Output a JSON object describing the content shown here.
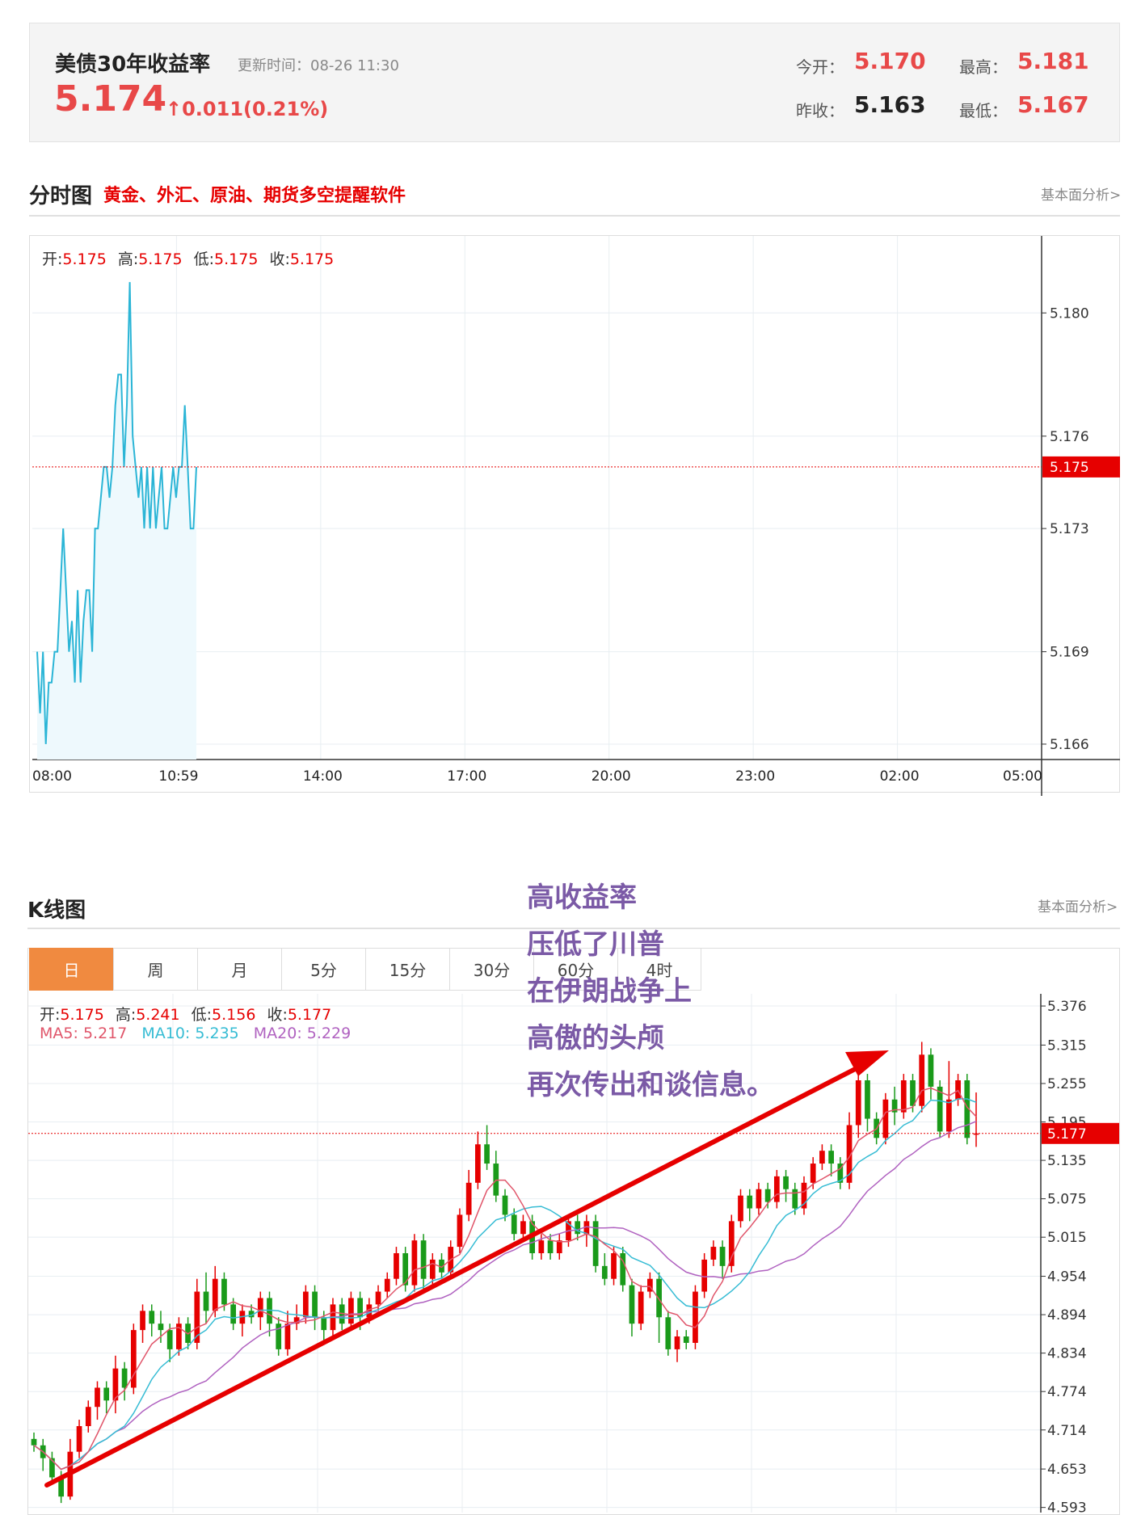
{
  "quote": {
    "title": "美债30年收益率",
    "update_label": "更新时间：",
    "update_time": "08-26 11:30",
    "price": "5.174",
    "change": "0.011(0.21%)",
    "open_label": "今开：",
    "open": "5.170",
    "high_label": "最高：",
    "high": "5.181",
    "prev_close_label": "昨收：",
    "prev_close": "5.163",
    "low_label": "最低：",
    "low": "5.167"
  },
  "intraday_section": {
    "title": "分时图",
    "ad": "黄金、外汇、原油、期货多空提醒软件",
    "link": "基本面分析>",
    "ohlc": {
      "open_label": "开:",
      "open": "5.175",
      "high_label": "高:",
      "high": "5.175",
      "low_label": "低:",
      "low": "5.175",
      "close_label": "收:",
      "close": "5.175"
    }
  },
  "kline_section": {
    "title": "K线图",
    "link": "基本面分析>",
    "tabs": [
      "日",
      "周",
      "月",
      "5分",
      "15分",
      "30分",
      "60分",
      "4时"
    ],
    "active_tab": "日",
    "ohlc": {
      "open_label": "开:",
      "open": "5.175",
      "high_label": "高:",
      "high": "5.241",
      "low_label": "低:",
      "low": "5.156",
      "close_label": "收:",
      "close": "5.177"
    },
    "ma": {
      "ma5_label": "MA5:",
      "ma5": "5.217",
      "ma10_label": "MA10:",
      "ma10": "5.235",
      "ma20_label": "MA20:",
      "ma20": "5.229"
    }
  },
  "annotation": [
    "高收益率",
    "压低了川普",
    "在伊朗战争上",
    "高傲的头颅",
    "再次传出和谈信息。"
  ],
  "colors": {
    "up": "#e60000",
    "down": "#1a9a1a",
    "line": "#2bb5d6",
    "ma5": "#e0556a",
    "ma10": "#36bcd4",
    "ma20": "#b062c0",
    "annotation": "#7b5aa6"
  },
  "chart_data": [
    {
      "type": "line",
      "x_ticks": [
        "08:00",
        "10:59",
        "14:00",
        "17:00",
        "20:00",
        "23:00",
        "02:00",
        "05:00"
      ],
      "y_ticks": [
        "5.180",
        "5.176",
        "5.173",
        "5.169",
        "5.166"
      ],
      "ylim": [
        5.1655,
        5.1825
      ],
      "current_price": "5.175",
      "series": [
        {
          "values": [
            5.169,
            5.167,
            5.169,
            5.166,
            5.168,
            5.168,
            5.169,
            5.169,
            5.171,
            5.173,
            5.171,
            5.169,
            5.17,
            5.168,
            5.171,
            5.168,
            5.17,
            5.171,
            5.171,
            5.169,
            5.173,
            5.173,
            5.174,
            5.175,
            5.175,
            5.174,
            5.175,
            5.177,
            5.178,
            5.178,
            5.175,
            5.177,
            5.181,
            5.176,
            5.175,
            5.174,
            5.175,
            5.173,
            5.175,
            5.173,
            5.175,
            5.173,
            5.174,
            5.175,
            5.173,
            5.173,
            5.174,
            5.175,
            5.174,
            5.175,
            5.175,
            5.177,
            5.175,
            5.173,
            5.173,
            5.175
          ]
        }
      ]
    },
    {
      "type": "candlestick",
      "y_ticks": [
        "5.376",
        "5.315",
        "5.255",
        "5.195",
        "5.135",
        "5.075",
        "5.015",
        "4.954",
        "4.894",
        "4.834",
        "4.774",
        "4.714",
        "4.653",
        "4.593"
      ],
      "ylim": [
        4.585,
        5.395
      ],
      "current_price": "5.177",
      "candles": [
        [
          4.7,
          4.69,
          4.71,
          4.68
        ],
        [
          4.69,
          4.67,
          4.7,
          4.65
        ],
        [
          4.67,
          4.64,
          4.68,
          4.63
        ],
        [
          4.64,
          4.61,
          4.65,
          4.6
        ],
        [
          4.61,
          4.68,
          4.7,
          4.605
        ],
        [
          4.68,
          4.72,
          4.73,
          4.67
        ],
        [
          4.72,
          4.75,
          4.76,
          4.71
        ],
        [
          4.75,
          4.78,
          4.79,
          4.73
        ],
        [
          4.78,
          4.76,
          4.79,
          4.74
        ],
        [
          4.76,
          4.81,
          4.83,
          4.74
        ],
        [
          4.81,
          4.78,
          4.82,
          4.76
        ],
        [
          4.78,
          4.87,
          4.88,
          4.77
        ],
        [
          4.87,
          4.9,
          4.91,
          4.85
        ],
        [
          4.9,
          4.88,
          4.91,
          4.86
        ],
        [
          4.88,
          4.87,
          4.9,
          4.85
        ],
        [
          4.87,
          4.84,
          4.88,
          4.82
        ],
        [
          4.84,
          4.88,
          4.89,
          4.83
        ],
        [
          4.88,
          4.85,
          4.89,
          4.84
        ],
        [
          4.85,
          4.93,
          4.95,
          4.84
        ],
        [
          4.93,
          4.9,
          4.96,
          4.88
        ],
        [
          4.9,
          4.95,
          4.97,
          4.89
        ],
        [
          4.95,
          4.91,
          4.96,
          4.9
        ],
        [
          4.91,
          4.88,
          4.92,
          4.87
        ],
        [
          4.88,
          4.9,
          4.91,
          4.86
        ],
        [
          4.9,
          4.89,
          4.91,
          4.88
        ],
        [
          4.89,
          4.92,
          4.93,
          4.87
        ],
        [
          4.92,
          4.88,
          4.93,
          4.86
        ],
        [
          4.88,
          4.84,
          4.89,
          4.83
        ],
        [
          4.84,
          4.88,
          4.9,
          4.83
        ],
        [
          4.88,
          4.89,
          4.91,
          4.87
        ],
        [
          4.89,
          4.93,
          4.94,
          4.88
        ],
        [
          4.93,
          4.89,
          4.94,
          4.87
        ],
        [
          4.89,
          4.87,
          4.9,
          4.85
        ],
        [
          4.87,
          4.91,
          4.92,
          4.86
        ],
        [
          4.91,
          4.88,
          4.92,
          4.87
        ],
        [
          4.88,
          4.92,
          4.93,
          4.87
        ],
        [
          4.92,
          4.89,
          4.93,
          4.87
        ],
        [
          4.89,
          4.91,
          4.92,
          4.88
        ],
        [
          4.91,
          4.93,
          4.94,
          4.9
        ],
        [
          4.93,
          4.95,
          4.96,
          4.92
        ],
        [
          4.95,
          4.99,
          5.0,
          4.94
        ],
        [
          4.99,
          4.94,
          5.0,
          4.93
        ],
        [
          4.94,
          5.01,
          5.02,
          4.93
        ],
        [
          5.01,
          4.95,
          5.02,
          4.93
        ],
        [
          4.95,
          4.98,
          4.99,
          4.94
        ],
        [
          4.98,
          4.96,
          4.99,
          4.95
        ],
        [
          4.96,
          5.0,
          5.01,
          4.95
        ],
        [
          5.0,
          5.05,
          5.06,
          4.99
        ],
        [
          5.05,
          5.1,
          5.12,
          5.04
        ],
        [
          5.1,
          5.16,
          5.18,
          5.09
        ],
        [
          5.16,
          5.13,
          5.19,
          5.12
        ],
        [
          5.13,
          5.08,
          5.15,
          5.07
        ],
        [
          5.08,
          5.05,
          5.09,
          5.04
        ],
        [
          5.05,
          5.02,
          5.06,
          5.01
        ],
        [
          5.02,
          5.04,
          5.05,
          5.01
        ],
        [
          5.04,
          4.99,
          5.05,
          4.98
        ],
        [
          4.99,
          5.01,
          5.02,
          4.98
        ],
        [
          5.01,
          4.99,
          5.02,
          4.98
        ],
        [
          4.99,
          5.01,
          5.02,
          4.98
        ],
        [
          5.01,
          5.04,
          5.05,
          5.0
        ],
        [
          5.04,
          5.02,
          5.05,
          5.01
        ],
        [
          5.02,
          5.04,
          5.05,
          5.0
        ],
        [
          5.04,
          4.97,
          5.05,
          4.96
        ],
        [
          4.97,
          4.95,
          4.99,
          4.94
        ],
        [
          4.95,
          4.99,
          5.0,
          4.94
        ],
        [
          4.99,
          4.94,
          5.0,
          4.93
        ],
        [
          4.94,
          4.88,
          4.95,
          4.86
        ],
        [
          4.88,
          4.93,
          4.94,
          4.87
        ],
        [
          4.93,
          4.95,
          4.96,
          4.92
        ],
        [
          4.95,
          4.89,
          4.96,
          4.85
        ],
        [
          4.89,
          4.84,
          4.9,
          4.83
        ],
        [
          4.84,
          4.86,
          4.87,
          4.82
        ],
        [
          4.86,
          4.85,
          4.87,
          4.84
        ],
        [
          4.85,
          4.93,
          4.94,
          4.84
        ],
        [
          4.93,
          4.98,
          4.99,
          4.92
        ],
        [
          4.98,
          5.0,
          5.01,
          4.97
        ],
        [
          5.0,
          4.97,
          5.01,
          4.95
        ],
        [
          4.97,
          5.04,
          5.05,
          4.96
        ],
        [
          5.04,
          5.08,
          5.09,
          5.03
        ],
        [
          5.08,
          5.06,
          5.09,
          5.04
        ],
        [
          5.06,
          5.09,
          5.1,
          5.05
        ],
        [
          5.09,
          5.07,
          5.1,
          5.06
        ],
        [
          5.07,
          5.11,
          5.12,
          5.06
        ],
        [
          5.11,
          5.09,
          5.12,
          5.07
        ],
        [
          5.09,
          5.06,
          5.1,
          5.05
        ],
        [
          5.06,
          5.1,
          5.11,
          5.05
        ],
        [
          5.1,
          5.13,
          5.14,
          5.09
        ],
        [
          5.13,
          5.15,
          5.16,
          5.12
        ],
        [
          5.15,
          5.13,
          5.16,
          5.11
        ],
        [
          5.13,
          5.1,
          5.14,
          5.09
        ],
        [
          5.1,
          5.19,
          5.21,
          5.09
        ],
        [
          5.19,
          5.26,
          5.28,
          5.17
        ],
        [
          5.26,
          5.2,
          5.27,
          5.18
        ],
        [
          5.2,
          5.17,
          5.21,
          5.16
        ],
        [
          5.17,
          5.23,
          5.24,
          5.16
        ],
        [
          5.23,
          5.21,
          5.25,
          5.19
        ],
        [
          5.21,
          5.26,
          5.27,
          5.2
        ],
        [
          5.26,
          5.22,
          5.27,
          5.21
        ],
        [
          5.22,
          5.3,
          5.32,
          5.21
        ],
        [
          5.3,
          5.25,
          5.31,
          5.23
        ],
        [
          5.25,
          5.18,
          5.26,
          5.17
        ],
        [
          5.18,
          5.23,
          5.29,
          5.17
        ],
        [
          5.23,
          5.26,
          5.27,
          5.22
        ],
        [
          5.26,
          5.17,
          5.27,
          5.16
        ],
        [
          5.175,
          5.177,
          5.241,
          5.156
        ]
      ]
    }
  ]
}
